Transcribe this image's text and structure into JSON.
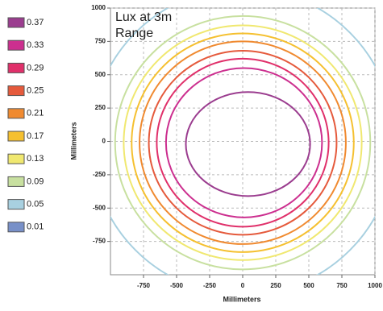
{
  "chart_data": {
    "type": "contour",
    "annotation": [
      "Lux at 3m",
      "Range"
    ],
    "x_label": "Millimeters",
    "y_label": "Millimeters",
    "levels": [
      0.37,
      0.33,
      0.29,
      0.25,
      0.21,
      0.17,
      0.13,
      0.09,
      0.05,
      0.01
    ],
    "colors": [
      "#9b3d8f",
      "#cc2f8f",
      "#e0306a",
      "#e55a3c",
      "#f08a30",
      "#f5c030",
      "#f0e870",
      "#c8e0a0",
      "#a8d0e0",
      "#7890c8"
    ],
    "contours": [
      {
        "cx": 40,
        "cy": -20,
        "rx": 470,
        "ry": 390
      },
      {
        "cx": 10,
        "cy": -10,
        "rx": 590,
        "ry": 560
      },
      {
        "cx": 0,
        "cy": -10,
        "rx": 650,
        "ry": 630
      },
      {
        "cx": 0,
        "cy": -10,
        "rx": 710,
        "ry": 690
      },
      {
        "cx": 0,
        "cy": -10,
        "rx": 780,
        "ry": 760
      },
      {
        "cx": 0,
        "cy": -10,
        "rx": 840,
        "ry": 820
      },
      {
        "cx": 0,
        "cy": -10,
        "rx": 900,
        "ry": 880
      },
      {
        "cx": 0,
        "cy": -10,
        "rx": 965,
        "ry": 950
      },
      {
        "cx": 0,
        "cy": 0,
        "rx": 1150,
        "ry": 1150
      },
      null
    ],
    "xlim": [
      -1000,
      1000
    ],
    "ylim": [
      -1000,
      1000
    ],
    "xticks": [
      -750,
      -500,
      -250,
      0,
      250,
      500,
      750,
      1000
    ],
    "yticks": [
      1000,
      750,
      500,
      250,
      0,
      -250,
      -500,
      -750
    ],
    "grid": true
  }
}
